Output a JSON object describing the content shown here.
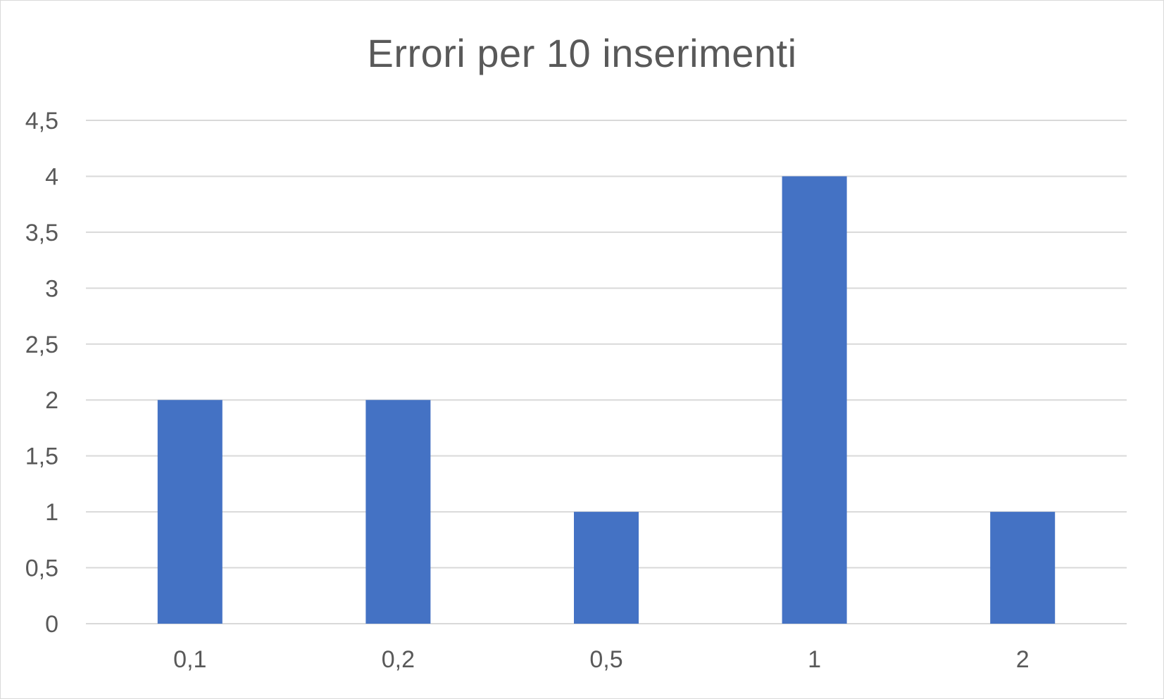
{
  "chart_data": {
    "type": "bar",
    "title": "Errori per 10 inserimenti",
    "xlabel": "",
    "ylabel": "",
    "categories": [
      "0,1",
      "0,2",
      "0,5",
      "1",
      "2"
    ],
    "values": [
      2,
      2,
      1,
      4,
      1
    ],
    "ylim": [
      0,
      4.5
    ],
    "yticks": [
      0,
      0.5,
      1,
      1.5,
      2,
      2.5,
      3,
      3.5,
      4,
      4.5
    ],
    "ytick_labels": [
      "0",
      "0,5",
      "1",
      "1,5",
      "2",
      "2,5",
      "3",
      "3,5",
      "4",
      "4,5"
    ],
    "grid": true,
    "legend": "none",
    "bar_color": "#4472C4"
  }
}
